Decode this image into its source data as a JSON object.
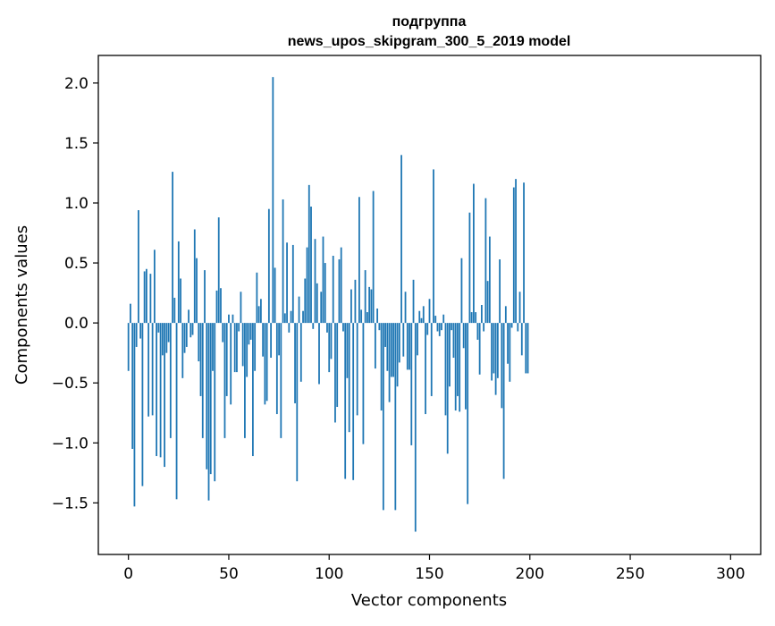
{
  "chart_data": {
    "type": "bar",
    "title": "подгруппа\nnews_upos_skipgram_300_5_2019 model",
    "title_lines": [
      "подгруппа",
      "news_upos_skipgram_300_5_2019 model"
    ],
    "xlabel": "Vector components",
    "ylabel": "Components values",
    "xlim": [
      -15,
      315
    ],
    "ylim": [
      -1.93,
      2.23
    ],
    "xticks": [
      0,
      50,
      100,
      150,
      200,
      250,
      300
    ],
    "yticks": [
      -1.5,
      -1.0,
      -0.5,
      0.0,
      0.5,
      1.0,
      1.5,
      2.0
    ],
    "ytick_labels": [
      "−1.5",
      "−1.0",
      "−0.5",
      "0.0",
      "0.5",
      "1.0",
      "1.5",
      "2.0"
    ],
    "bar_color": "#1f77b4",
    "grid": false,
    "series": [
      {
        "name": "Components values",
        "values": [
          -0.4,
          0.16,
          -1.05,
          -1.53,
          -0.2,
          0.94,
          -0.13,
          -1.36,
          0.43,
          0.45,
          -0.78,
          0.41,
          -0.77,
          0.61,
          -1.11,
          -0.08,
          -1.12,
          -0.27,
          -1.2,
          -0.25,
          -0.16,
          -0.96,
          1.26,
          0.21,
          -1.47,
          0.68,
          0.37,
          -0.46,
          -0.25,
          -0.2,
          0.11,
          -0.12,
          -0.1,
          0.78,
          0.54,
          -0.32,
          -0.61,
          -0.96,
          0.44,
          -1.22,
          -1.48,
          -1.26,
          -0.4,
          -1.32,
          0.27,
          0.88,
          0.29,
          -0.16,
          -0.96,
          -0.61,
          0.07,
          -0.68,
          0.07,
          -0.41,
          -0.41,
          -0.07,
          0.26,
          -0.36,
          -0.96,
          -0.45,
          -0.18,
          -0.14,
          -1.11,
          -0.4,
          0.42,
          0.14,
          0.2,
          -0.28,
          -0.68,
          -0.65,
          0.95,
          -0.29,
          2.05,
          0.46,
          -0.76,
          -0.27,
          -0.96,
          1.03,
          0.08,
          0.67,
          -0.08,
          0.1,
          0.65,
          -0.67,
          -1.32,
          0.22,
          -0.49,
          0.1,
          0.37,
          0.63,
          1.15,
          0.97,
          -0.05,
          0.7,
          0.33,
          -0.51,
          0.26,
          0.72,
          0.5,
          -0.08,
          -0.41,
          -0.3,
          0.56,
          -0.83,
          -0.7,
          0.53,
          0.63,
          -0.07,
          -1.3,
          -0.46,
          -0.91,
          0.28,
          -1.31,
          0.36,
          -0.77,
          1.05,
          0.11,
          -1.01,
          0.44,
          0.09,
          0.3,
          0.28,
          1.1,
          -0.38,
          0.12,
          -0.06,
          -0.73,
          -1.56,
          -0.2,
          -0.4,
          -0.66,
          -0.45,
          -0.45,
          -1.56,
          -0.53,
          -0.33,
          1.4,
          -0.28,
          0.26,
          -0.39,
          -0.39,
          -1.02,
          0.36,
          -1.74,
          -0.27,
          0.1,
          0.04,
          0.14,
          -0.76,
          -0.1,
          0.2,
          -0.61,
          1.28,
          0.06,
          -0.07,
          -0.11,
          -0.06,
          0.07,
          -0.77,
          -1.09,
          -0.53,
          -0.06,
          -0.29,
          -0.73,
          -0.61,
          -0.74,
          0.54,
          -0.21,
          -0.72,
          -1.51,
          0.92,
          0.09,
          1.16,
          0.09,
          -0.14,
          -0.43,
          0.15,
          -0.07,
          1.04,
          0.35,
          0.72,
          -0.48,
          -0.42,
          -0.6,
          -0.46,
          0.53,
          -0.71,
          -1.3,
          0.14,
          -0.34,
          -0.49,
          -0.04,
          1.13,
          1.2,
          -0.07,
          0.26,
          -0.27,
          1.17,
          -0.42,
          -0.42
        ]
      }
    ]
  }
}
